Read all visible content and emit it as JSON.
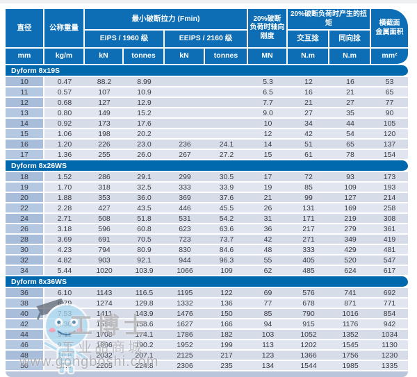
{
  "watermark": {
    "brand": "工博士",
    "tagline": "工业品商城",
    "url": "www.gongboshi.com"
  },
  "colors": {
    "header_blue": "#0d6eb5",
    "section_blue": "#0069ad",
    "row_light": "#e1e5ef",
    "row_dark": "#d7dce9",
    "diameter_col_light": "#b5c8e2",
    "diameter_col_dark": "#a7bdda"
  },
  "table": {
    "header": {
      "diameter": "直径",
      "nominal_weight": "公称重量",
      "min_break_force": "最小破断拉力 (Fmin)",
      "eips_grade": "EIPS / 1960 级",
      "eeips_grade": "EEIPS / 2160 级",
      "axial_stiffness": "20%破断\n负荷时轴向\n刚度",
      "torque_title": "20%破断负荷时产生的扭矩",
      "regular_lay": "交互捻",
      "lang_lay": "同向捻",
      "cross_section": "横截面\n金属面积",
      "units": [
        "mm",
        "kg/m",
        "kN",
        "tonnes",
        "kN",
        "tonnes",
        "MN",
        "N.m",
        "N.m",
        "mm²"
      ]
    },
    "sections": [
      {
        "label": "Dyform 8x19S",
        "rows": [
          [
            "10",
            "0.47",
            "88.2",
            "8.99",
            "",
            "",
            "5.3",
            "12",
            "16",
            "53"
          ],
          [
            "11",
            "0.57",
            "107",
            "10.9",
            "",
            "",
            "6.5",
            "16",
            "21",
            "65"
          ],
          [
            "12",
            "0.68",
            "127",
            "12.9",
            "",
            "",
            "7.7",
            "21",
            "27",
            "77"
          ],
          [
            "13",
            "0.80",
            "149",
            "15.2",
            "",
            "",
            "9.0",
            "27",
            "35",
            "90"
          ],
          [
            "14",
            "0.92",
            "173",
            "17.6",
            "",
            "",
            "10",
            "34",
            "44",
            "105"
          ],
          [
            "15",
            "1.06",
            "198",
            "20.2",
            "",
            "",
            "12",
            "42",
            "54",
            "120"
          ],
          [
            "16",
            "1.20",
            "226",
            "23.0",
            "236",
            "24.1",
            "14",
            "51",
            "65",
            "137"
          ],
          [
            "17",
            "1.36",
            "255",
            "26.0",
            "267",
            "27.2",
            "15",
            "61",
            "78",
            "154"
          ]
        ]
      },
      {
        "label": "Dyform 8x26WS",
        "rows": [
          [
            "18",
            "1.52",
            "286",
            "29.1",
            "299",
            "30.5",
            "17",
            "72",
            "93",
            "173"
          ],
          [
            "19",
            "1.70",
            "318",
            "32.5",
            "333",
            "33.9",
            "19",
            "85",
            "109",
            "193"
          ],
          [
            "20",
            "1.88",
            "353",
            "36.0",
            "369",
            "37.6",
            "21",
            "99",
            "127",
            "214"
          ],
          [
            "22",
            "2.28",
            "427",
            "43.5",
            "446",
            "45.5",
            "26",
            "131",
            "169",
            "258"
          ],
          [
            "24",
            "2.71",
            "508",
            "51.8",
            "531",
            "54.2",
            "31",
            "171",
            "219",
            "308"
          ],
          [
            "26",
            "3.18",
            "596",
            "60.8",
            "623",
            "63.6",
            "36",
            "217",
            "279",
            "361"
          ],
          [
            "28",
            "3.69",
            "691",
            "70.5",
            "723",
            "73.7",
            "42",
            "271",
            "349",
            "419"
          ],
          [
            "30",
            "4.23",
            "794",
            "80.9",
            "830",
            "84.6",
            "48",
            "333",
            "429",
            "481"
          ],
          [
            "32",
            "4.82",
            "903",
            "92.1",
            "944",
            "96.3",
            "55",
            "405",
            "520",
            "547"
          ],
          [
            "34",
            "5.44",
            "1020",
            "103.9",
            "1066",
            "109",
            "62",
            "485",
            "624",
            "617"
          ]
        ]
      },
      {
        "label": "Dyform 8x36WS",
        "rows": [
          [
            "36",
            "6.10",
            "1143",
            "116.5",
            "1195",
            "122",
            "69",
            "576",
            "741",
            "692"
          ],
          [
            "38",
            "6.79",
            "1274",
            "129.8",
            "1332",
            "136",
            "77",
            "678",
            "871",
            "771"
          ],
          [
            "40",
            "7.53",
            "1411",
            "143.9",
            "1476",
            "150",
            "85",
            "790",
            "1016",
            "854"
          ],
          [
            "42",
            "8.30",
            "1556",
            "158.6",
            "1627",
            "166",
            "94",
            "915",
            "1176",
            "942"
          ],
          [
            "44",
            "9.11",
            "1708",
            "174.1",
            "1786",
            "182",
            "103",
            "1052",
            "1352",
            "1034"
          ],
          [
            "46",
            "9.95",
            "1866",
            "190.2",
            "1952",
            "199",
            "113",
            "1202",
            "1545",
            "1130"
          ],
          [
            "48",
            "10.8",
            "2032",
            "207.1",
            "2125",
            "217",
            "123",
            "1366",
            "1756",
            "1230"
          ],
          [
            "50",
            "11.8",
            "2205",
            "224.8",
            "2306",
            "235",
            "134",
            "1544",
            "1985",
            "1335"
          ]
        ]
      }
    ]
  }
}
